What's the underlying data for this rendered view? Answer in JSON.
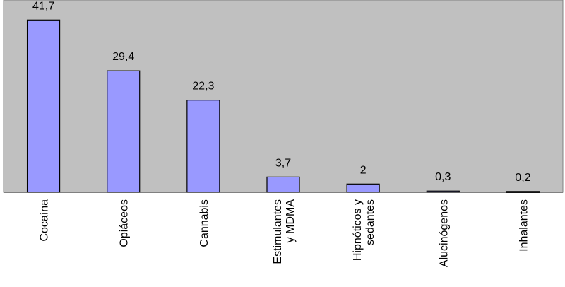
{
  "chart_data": {
    "type": "bar",
    "categories": [
      "Cocaína",
      "Opiáceos",
      "Cannabis",
      "Estimulantes\ny MDMA",
      "Hipnóticos y\nsedantes",
      "Alucinógenos",
      "Inhalantes"
    ],
    "values": [
      41.7,
      29.4,
      22.3,
      3.7,
      2,
      0.3,
      0.2
    ],
    "value_labels": [
      "41,7",
      "29,4",
      "22,3",
      "3,7",
      "2",
      "0,3",
      "0,2"
    ],
    "color": "#9999ff",
    "ylim": [
      0,
      45
    ]
  }
}
